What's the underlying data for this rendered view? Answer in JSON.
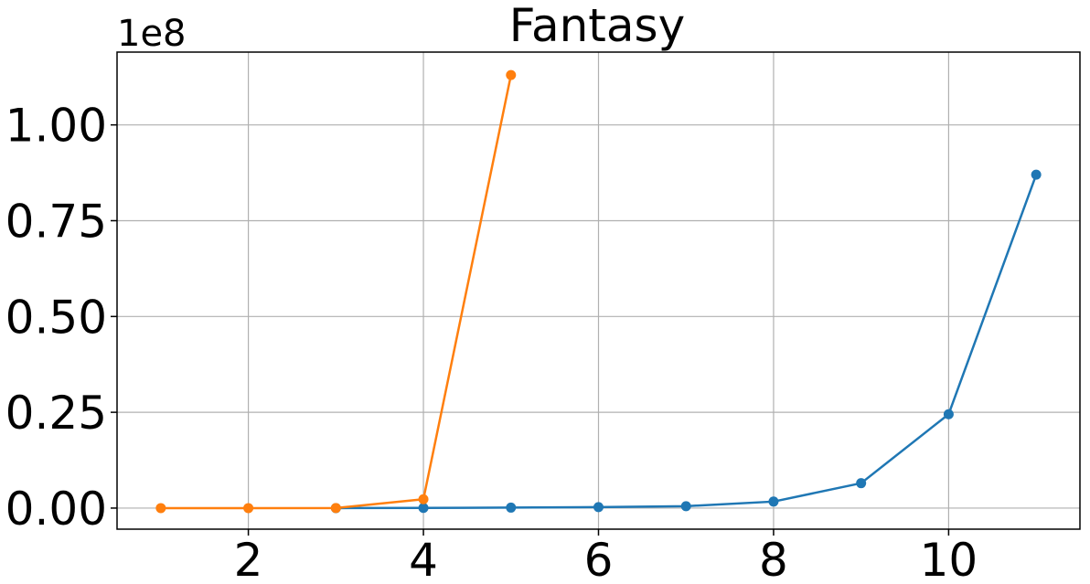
{
  "chart_data": {
    "type": "line",
    "title": "Fantasy",
    "xlabel": "",
    "ylabel": "",
    "y_offset_label": "1e8",
    "xlim": [
      0.5,
      11.5
    ],
    "ylim": [
      -5500000,
      119000000
    ],
    "xticks": [
      2,
      4,
      6,
      8,
      10
    ],
    "xtick_labels": [
      "2",
      "4",
      "6",
      "8",
      "10"
    ],
    "yticks": [
      0,
      25000000,
      50000000,
      75000000,
      100000000
    ],
    "ytick_labels": [
      "0.00",
      "0.25",
      "0.50",
      "0.75",
      "1.00"
    ],
    "grid": true,
    "series": [
      {
        "color": "#1f77b4",
        "x": [
          3,
          4,
          5,
          6,
          7,
          8,
          9,
          10,
          11
        ],
        "y": [
          0,
          50000,
          120000,
          250000,
          500000,
          1700000,
          6500000,
          24500000,
          87000000
        ]
      },
      {
        "color": "#ff7f0e",
        "x": [
          1,
          2,
          3,
          4,
          5
        ],
        "y": [
          0,
          0,
          10000,
          2300000,
          113000000
        ]
      }
    ]
  }
}
